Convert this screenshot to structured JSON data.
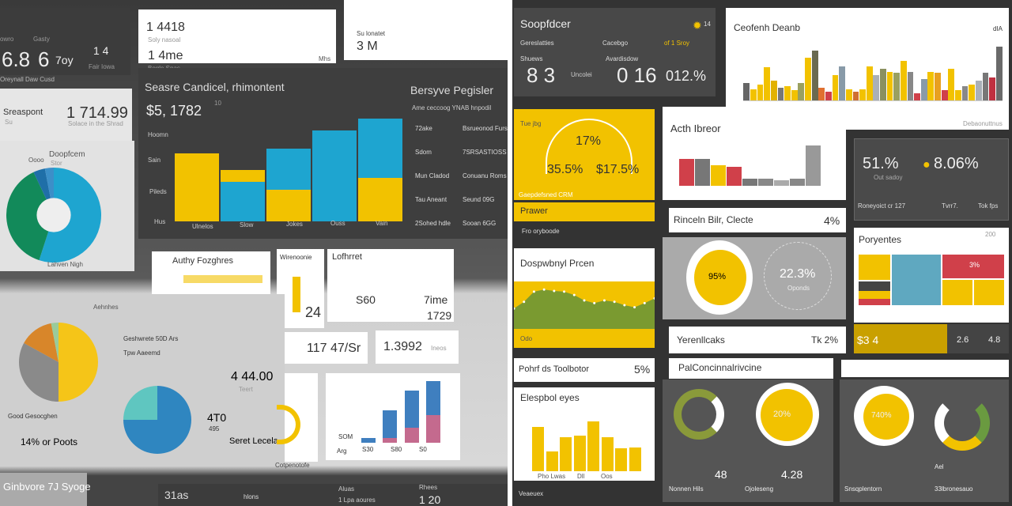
{
  "colors": {
    "yellow": "#f2c200",
    "blue": "#1ea5d0",
    "green": "#128a5a",
    "dark": "#3c3c3c",
    "red": "#d0404a",
    "gray": "#8a8a8a",
    "teal": "#5fbcc0",
    "pink": "#c46a8e"
  },
  "left": {
    "kpi1": {
      "v1": "6.8",
      "v2": "6",
      "v3": "7oy",
      "v4": "1 4",
      "sub": "Oreynall Daw Cusd",
      "l1": "owro",
      "l2": "Gasty",
      "l3": "Fair Iowa"
    },
    "card1": {
      "v1": "1 4418",
      "s1": "Soly nasoal",
      "v2": "1 4me",
      "s2": "Bogle Spas",
      "unit": "Mhs"
    },
    "card2": {
      "label": "Su lonatet",
      "value": "3 M"
    },
    "card3": {
      "label": "Sreaspont",
      "sub": "Su",
      "value": "1 714.99",
      "caption": "Solace in the Shrad"
    },
    "donut": {
      "title": "Doopfcem",
      "sub": "Stor",
      "tab": "Oooo",
      "footer": "Lahven Nigh",
      "slices": [
        {
          "v": 55,
          "c": "#1ea5d0"
        },
        {
          "v": 38,
          "c": "#128a5a"
        },
        {
          "v": 4,
          "c": "#1f6fa8"
        },
        {
          "v": 3,
          "c": "#3c8fc8"
        }
      ]
    },
    "bigchart": {
      "title": "Seasre Candicel, rhimontent",
      "value": "$5, 1782",
      "sup": "10",
      "ylabels": [
        "Hoomn",
        "Sain",
        "Pileds",
        "Hus"
      ],
      "xlabels": [
        "Ulnelos",
        "Slow",
        "Jokes",
        "Ouss",
        "Vain"
      ],
      "stacks": [
        [
          {
            "v": 60,
            "c": "#f2c200"
          }
        ],
        [
          {
            "v": 35,
            "c": "#1ea5d0"
          },
          {
            "v": 10,
            "c": "#f2c200"
          }
        ],
        [
          {
            "v": 28,
            "c": "#f2c200"
          },
          {
            "v": 36,
            "c": "#1ea5d0"
          }
        ],
        [
          {
            "v": 80,
            "c": "#1ea5d0"
          }
        ],
        [
          {
            "v": 38,
            "c": "#f2c200"
          },
          {
            "v": 52,
            "c": "#1ea5d0"
          }
        ]
      ]
    },
    "register": {
      "title": "Bersyve Pegisler",
      "sub": "Ame ceccoog YNAB hnpodil",
      "rows": [
        {
          "a": "72ake",
          "b": "Bsrueonod Furs"
        },
        {
          "a": "Sdom",
          "b": "7SRSASTIOSS"
        },
        {
          "a": "Mun Cladod",
          "b": "Conuanu Roms"
        },
        {
          "a": "Tau Aneant",
          "b": "Seund 09G"
        },
        {
          "a": "2Sohed hdle",
          "b": "Sooan 6GG"
        }
      ]
    },
    "pie1": {
      "label": "Aehnhes",
      "legend1": "Geshwrete 50D Ars",
      "legend2": "Tpw Aaeemd",
      "bottom": "Good Gesocghen",
      "pct": "14% or Poots",
      "slices": [
        {
          "v": 50,
          "c": "#f5c518"
        },
        {
          "v": 33,
          "c": "#8a8a8a"
        },
        {
          "v": 14,
          "c": "#d8862a"
        },
        {
          "v": 3,
          "c": "#9acb9a"
        }
      ]
    },
    "pie2": {
      "value": "4 44.00",
      "valsub": "Teert",
      "v2": "4T0",
      "v3": "495",
      "caption": "Seret Lecela",
      "slices": [
        {
          "v": 75,
          "c": "#2f86c0"
        },
        {
          "v": 25,
          "c": "#5fc6c0"
        }
      ]
    },
    "cards": {
      "aut": "Authy Fozghres",
      "wir": "Wirenoonie",
      "lof": "Lofhrret",
      "n24": "24",
      "s60": "S60",
      "time": "7ime",
      "t1729": "1729",
      "v117": "117 47/Sr",
      "v1392": "1.3992",
      "v1392s": "Ineos",
      "comp": "Cotpenotofe",
      "stack_x": [
        "Arg",
        "S30",
        "S80",
        "S0"
      ],
      "som": "SOM",
      "stack": [
        [
          {
            "v": 8,
            "c": "#3f7fbf"
          }
        ],
        [
          {
            "v": 8,
            "c": "#c46a8e"
          },
          {
            "v": 45,
            "c": "#3f7fbf"
          }
        ],
        [
          {
            "v": 25,
            "c": "#c46a8e"
          },
          {
            "v": 60,
            "c": "#3f7fbf"
          }
        ],
        [
          {
            "v": 45,
            "c": "#c46a8e"
          },
          {
            "v": 55,
            "c": "#3f7fbf"
          }
        ]
      ]
    },
    "bottom": {
      "banner": "Ginbvore 7J Syoge",
      "v1": "31as",
      "l1": "hlons",
      "l2": "Aluas",
      "l3": "Rhees",
      "v2": "1 Lpa aoures",
      "v3": "1 20"
    }
  },
  "right": {
    "score": {
      "title": "Soopfdcer",
      "badge": "14",
      "c1": "Gereslatties",
      "c2": "Cacebgo",
      "c3": "of 1 Sroy",
      "l1": "Shuews",
      "l2": "Avardisdow",
      "v1": "8 3",
      "v1s": "Uncolei",
      "v2": "0 16",
      "v3": "012.%"
    },
    "bars": {
      "title": "Ceofenh Deanb",
      "corner": "dIA",
      "footer": "Debaonuttnus",
      "values": [
        {
          "v": 30,
          "c": "#666"
        },
        {
          "v": 20,
          "c": "#f2c200"
        },
        {
          "v": 28,
          "c": "#f2c200"
        },
        {
          "v": 58,
          "c": "#f2c200"
        },
        {
          "v": 35,
          "c": "#e2b200"
        },
        {
          "v": 22,
          "c": "#777"
        },
        {
          "v": 25,
          "c": "#f2c200"
        },
        {
          "v": 18,
          "c": "#f2c200"
        },
        {
          "v": 30,
          "c": "#9aa060"
        },
        {
          "v": 75,
          "c": "#f2c200"
        },
        {
          "v": 88,
          "c": "#6a6a50"
        },
        {
          "v": 22,
          "c": "#e07030"
        },
        {
          "v": 15,
          "c": "#d0404a"
        },
        {
          "v": 45,
          "c": "#f2c200"
        },
        {
          "v": 60,
          "c": "#889aa8"
        },
        {
          "v": 20,
          "c": "#f2c200"
        },
        {
          "v": 15,
          "c": "#d07030"
        },
        {
          "v": 20,
          "c": "#f2c200"
        },
        {
          "v": 60,
          "c": "#f2c200"
        },
        {
          "v": 45,
          "c": "#aab0b8"
        },
        {
          "v": 55,
          "c": "#8a9060"
        },
        {
          "v": 50,
          "c": "#f2c200"
        },
        {
          "v": 48,
          "c": "#9aa060"
        },
        {
          "v": 70,
          "c": "#f2c200"
        },
        {
          "v": 50,
          "c": "#888"
        },
        {
          "v": 12,
          "c": "#d0404a"
        },
        {
          "v": 38,
          "c": "#889aa8"
        },
        {
          "v": 50,
          "c": "#f2c200"
        },
        {
          "v": 48,
          "c": "#e8a020"
        },
        {
          "v": 18,
          "c": "#d0404a"
        },
        {
          "v": 55,
          "c": "#f2c200"
        },
        {
          "v": 18,
          "c": "#f2c200"
        },
        {
          "v": 25,
          "c": "#888"
        },
        {
          "v": 28,
          "c": "#f2c200"
        },
        {
          "v": 35,
          "c": "#aab0b8"
        },
        {
          "v": 48,
          "c": "#777"
        },
        {
          "v": 40,
          "c": "#c03040"
        },
        {
          "v": 95,
          "c": "#6a6a6a"
        }
      ]
    },
    "gauge": {
      "tag": "Tue jbg",
      "v1": "17%",
      "v2": "35.5%",
      "v3": "$17.5%",
      "footer": "Gaepdefsned CRM"
    },
    "acth": {
      "title": "Acth Ibreor",
      "values": [
        {
          "v": 40,
          "c": "#d0404a"
        },
        {
          "v": 40,
          "c": "#777"
        },
        {
          "v": 30,
          "c": "#f2c200"
        },
        {
          "v": 28,
          "c": "#d0404a"
        },
        {
          "v": 10,
          "c": "#777"
        },
        {
          "v": 10,
          "c": "#888"
        },
        {
          "v": 8,
          "c": "#aaa"
        },
        {
          "v": 10,
          "c": "#888"
        },
        {
          "v": 60,
          "c": "#999"
        }
      ]
    },
    "kpi": {
      "v1": "51.%",
      "v2": "8.06%",
      "sub1": "Out sadoy",
      "foot": "Roneyoict cr 127",
      "foot2": "Tvrr7.",
      "foot3": "Tok fps"
    },
    "prawer": {
      "label": "Prawer",
      "sub": "Fro oryboode"
    },
    "rinc": {
      "label": "Rinceln Bilr, Clecte",
      "value": "4%"
    },
    "area": {
      "title": "Dospwbnyl Prcen",
      "label": "Odo",
      "values": [
        30,
        40,
        55,
        58,
        56,
        55,
        50,
        42,
        38,
        42,
        40,
        35,
        32,
        38,
        45
      ]
    },
    "donut": {
      "value": "95%",
      "value2": "22.3%",
      "sub2": "Oponds",
      "fill": 0.82
    },
    "tree": {
      "title": "Poryentes",
      "corner": "200",
      "pct": "3%"
    },
    "yer": {
      "label": "Yerenllcaks",
      "value": "Tk 2%"
    },
    "ykpi": {
      "v1": "$3 4",
      "v2": "2.6",
      "v3": "4.8"
    },
    "pohr": {
      "label": "Pohrf ds Toolbotor",
      "value": "5%"
    },
    "elesp": {
      "title": "Elespbol eyes",
      "xlabels": [
        "Pho Lwas",
        "Dll",
        "Oos"
      ],
      "values": [
        78,
        35,
        60,
        62,
        88,
        60,
        40,
        42
      ],
      "footer": "Veaeuex"
    },
    "pal": {
      "title": "PalConcinnalrivcine",
      "v1": "20%",
      "k1": "48",
      "k1l": "Nonnen Hils",
      "k2": "4.28",
      "k2l": "Ojoleseng"
    },
    "rl": {
      "v1": "740%",
      "k1l": "Snsqplentorn",
      "k2l": "33lbronesauo",
      "k2": "Ael"
    }
  }
}
